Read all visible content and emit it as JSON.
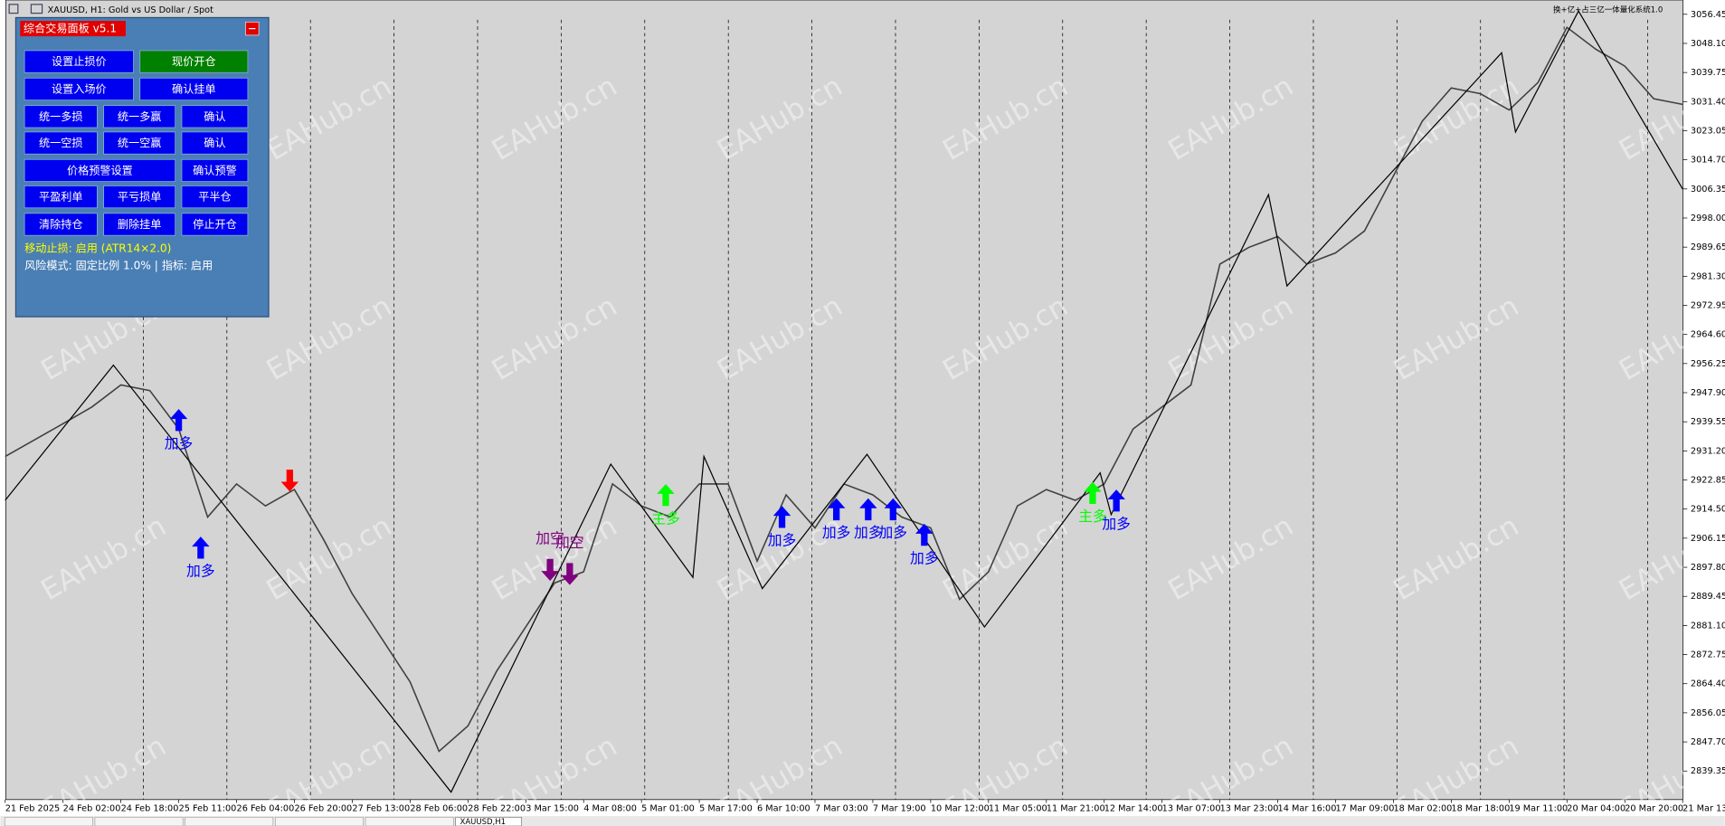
{
  "window": {
    "title": "XAUUSD, H1:  Gold vs US Dollar / Spot",
    "indicator": "换+亿+占三亿一体量化系统1.0",
    "watermark": "EAHub.cn",
    "tabs": [
      "XAUUSD,H1"
    ]
  },
  "panel": {
    "title": "综合交易面板 v5.1",
    "buttons": [
      [
        {
          "label": "设置止损价",
          "color": "#0000f0"
        },
        {
          "label": "现价开仓",
          "color": "#008000"
        }
      ],
      [
        {
          "label": "设置入场价",
          "color": "#0000f0"
        },
        {
          "label": "确认挂单",
          "color": "#0000f0"
        }
      ],
      [
        {
          "label": "统一多损",
          "color": "#0000f0"
        },
        {
          "label": "统一多赢",
          "color": "#0000f0"
        },
        {
          "label": "确认",
          "color": "#0000f0"
        }
      ],
      [
        {
          "label": "统一空损",
          "color": "#0000f0"
        },
        {
          "label": "统一空赢",
          "color": "#0000f0"
        },
        {
          "label": "确认",
          "color": "#0000f0"
        }
      ],
      [
        {
          "label": "价格预警设置",
          "color": "#0000f0"
        },
        {
          "label": "确认预警",
          "color": "#0000f0"
        }
      ],
      [
        {
          "label": "平盈利单",
          "color": "#0000f0"
        },
        {
          "label": "平亏损单",
          "color": "#0000f0"
        },
        {
          "label": "平半仓",
          "color": "#0000f0"
        }
      ],
      [
        {
          "label": "清除持仓",
          "color": "#0000f0"
        },
        {
          "label": "删除挂单",
          "color": "#0000f0"
        },
        {
          "label": "停止开仓",
          "color": "#0000f0"
        }
      ]
    ],
    "status": [
      {
        "text": "移动止损: 启用 (ATR14×2.0)",
        "color": "#ffff00"
      },
      {
        "text": "风险模式: 固定比例 1.0% | 指标: 启用",
        "color": "#ffffff"
      }
    ]
  },
  "chart_data": {
    "type": "line",
    "categories": [
      "21 Feb 2025",
      "24 Feb 02:00",
      "24 Feb 18:00",
      "25 Feb 11:00",
      "26 Feb 04:00",
      "26 Feb 20:00",
      "27 Feb 13:00",
      "28 Feb 06:00",
      "28 Feb 22:00",
      "3 Mar 15:00",
      "4 Mar 08:00",
      "5 Mar 01:00",
      "5 Mar 17:00",
      "6 Mar 10:00",
      "7 Mar 03:00",
      "7 Mar 19:00",
      "10 Mar 12:00",
      "11 Mar 05:00",
      "11 Mar 21:00",
      "12 Mar 14:00",
      "13 Mar 07:00",
      "13 Mar 23:00",
      "14 Mar 16:00",
      "17 Mar 09:00",
      "18 Mar 02:00",
      "18 Mar 18:00",
      "19 Mar 11:00",
      "20 Mar 04:00",
      "20 Mar 20:00",
      "21 Mar 13:00"
    ],
    "ylim": [
      2831.15,
      3060.55
    ],
    "yticks": [
      3056.45,
      {
        "value": 3048.1,
        "label": "3048.10"
      },
      3039.75,
      {
        "value": 3031.4,
        "label": "3031.40"
      },
      3023.05,
      {
        "value": 3014.7,
        "label": "3014.70"
      },
      3006.35,
      {
        "value": 2998,
        "label": "2998.00"
      },
      2989.65,
      {
        "value": 2981.3,
        "label": "2981.30"
      },
      2972.95,
      {
        "value": 2964.6,
        "label": "2964.60"
      },
      2956.25,
      {
        "value": 2947.9,
        "label": "2947.90"
      },
      2939.55,
      {
        "value": 2931.2,
        "label": "2931.20"
      },
      2922.85,
      {
        "value": 2914.5,
        "label": "2914.50"
      },
      2906.15,
      {
        "value": 2897.8,
        "label": "2897.80"
      },
      2889.45,
      {
        "value": 2881.1,
        "label": "2881.10"
      },
      2872.75,
      {
        "value": 2864.4,
        "label": "2864.40"
      },
      2856.05,
      {
        "value": 2847.7,
        "label": "2847.70"
      },
      2839.35
    ],
    "series": [
      {
        "color": "#404040",
        "x": [
          0,
          0.5,
          1,
          1.5,
          2,
          2.5,
          3,
          3.5,
          4,
          4.5,
          5,
          5.5,
          6,
          6.5,
          7,
          7.5,
          8,
          8.5,
          9,
          9.5,
          10,
          10.5,
          11,
          11.5,
          12,
          12.5,
          13,
          13.5,
          14,
          14.5,
          15,
          15.5,
          16,
          16.5,
          17,
          17.5,
          18,
          18.5,
          19,
          19.5,
          20,
          20.5,
          21,
          21.5,
          22,
          22.5,
          23,
          23.5,
          24,
          24.5,
          25,
          25.5,
          26,
          26.5,
          27,
          27.5,
          28,
          28.5,
          29
        ],
        "values": [
          2929.6,
          2934.3,
          2939.0,
          2943.8,
          2950.1,
          2948.5,
          2937.5,
          2912.2,
          2921.7,
          2915.4,
          2920.1,
          2905.9,
          2890.2,
          2877.6,
          2864.9,
          2845.0,
          2852.3,
          2868.1,
          2880.7,
          2893.3,
          2896.5,
          2921.7,
          2915.4,
          2912.2,
          2921.7,
          2921.7,
          2899.6,
          2918.6,
          2909.1,
          2921.7,
          2918.6,
          2912.2,
          2909.1,
          2888.6,
          2896.5,
          2915.4,
          2920.1,
          2917.0,
          2921.7,
          2937.5,
          2943.8,
          2950.1,
          2984.8,
          2989.6,
          2992.7,
          2984.8,
          2988.0,
          2994.3,
          3010.1,
          3025.8,
          3035.3,
          3033.7,
          3029.0,
          3036.9,
          3052.7,
          3046.4,
          3041.6,
          3032.2,
          3030.6
        ]
      },
      {
        "color": "#000000",
        "x": [
          0,
          1.87,
          7.71,
          10.47,
          11.89,
          12.08,
          13.09,
          14.9,
          16.93,
          18.93,
          19.12,
          21.84,
          22.16,
          25.87,
          26.11,
          27.2,
          29.0
        ],
        "values": [
          2917.0,
          2955.8,
          2833.3,
          2927.4,
          2894.9,
          2929.6,
          2891.7,
          2930.2,
          2880.7,
          2924.9,
          2912.9,
          3004.7,
          2978.5,
          3045.4,
          3022.7,
          3057.4,
          3006.3
        ]
      }
    ],
    "signals": [
      {
        "x": 3.0,
        "y": 2943.2,
        "direction": "up",
        "color": "#0000ff",
        "label": "加多"
      },
      {
        "x": 4.92,
        "y": 2919.5,
        "direction": "down",
        "color": "#ff0000"
      },
      {
        "x": 3.38,
        "y": 2906.6,
        "direction": "up",
        "color": "#0000ff",
        "label": "加多"
      },
      {
        "x": 9.42,
        "y": 2893.9,
        "direction": "down",
        "color": "#800080",
        "label": "加空"
      },
      {
        "x": 9.76,
        "y": 2892.7,
        "direction": "down",
        "color": "#800080",
        "label": "加空"
      },
      {
        "x": 11.42,
        "y": 2921.7,
        "direction": "up",
        "color": "#00ff00",
        "label": "主多"
      },
      {
        "x": 13.43,
        "y": 2915.4,
        "direction": "up",
        "color": "#0000ff",
        "label": "加多"
      },
      {
        "x": 14.37,
        "y": 2917.6,
        "direction": "up",
        "color": "#0000ff",
        "label": "加多"
      },
      {
        "x": 14.92,
        "y": 2917.6,
        "direction": "up",
        "color": "#0000ff",
        "label": "加多"
      },
      {
        "x": 15.35,
        "y": 2917.6,
        "direction": "up",
        "color": "#0000ff",
        "label": "加多"
      },
      {
        "x": 15.89,
        "y": 2910.3,
        "direction": "up",
        "color": "#0000ff",
        "label": "加多"
      },
      {
        "x": 18.8,
        "y": 2922.3,
        "direction": "up",
        "color": "#00ff00",
        "label": "主多"
      },
      {
        "x": 19.21,
        "y": 2920.1,
        "direction": "up",
        "color": "#0000ff",
        "label": "加多"
      }
    ]
  }
}
